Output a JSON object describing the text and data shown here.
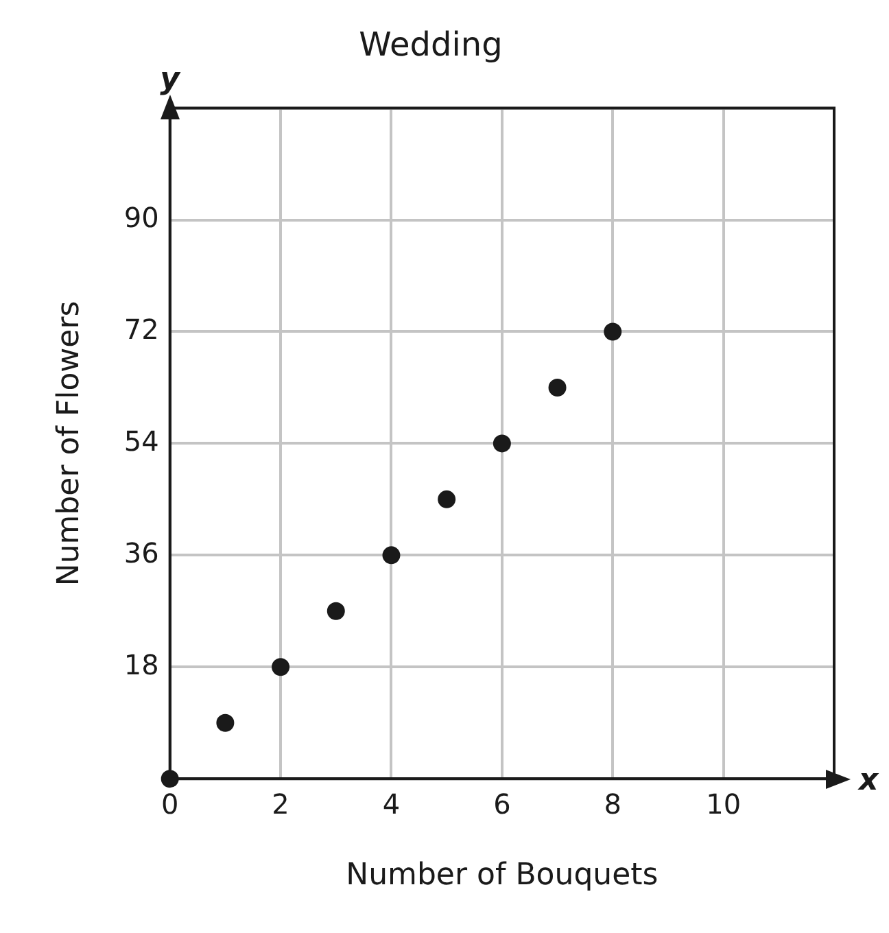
{
  "chart_data": {
    "type": "scatter",
    "title": "Wedding",
    "xlabel": "Number of Bouquets",
    "ylabel": "Number of Flowers",
    "annotations": [
      "y",
      "x"
    ],
    "series": [
      {
        "color": "#1a1a1a",
        "x": [
          0,
          1,
          2,
          3,
          4,
          5,
          6,
          7,
          8
        ],
        "values": [
          0,
          9,
          18,
          27,
          36,
          45,
          54,
          63,
          72
        ]
      }
    ],
    "xlim": [
      0,
      12
    ],
    "ylim": [
      0,
      108
    ],
    "xticks": [
      0,
      2,
      4,
      6,
      8,
      10,
      {
        "value": 12,
        "label": null
      }
    ],
    "yticks": [
      {
        "value": 0,
        "label": null
      },
      18,
      36,
      54,
      72,
      90,
      {
        "value": 108,
        "label": null
      }
    ],
    "grid": true,
    "legend": false,
    "marker": "circle"
  }
}
